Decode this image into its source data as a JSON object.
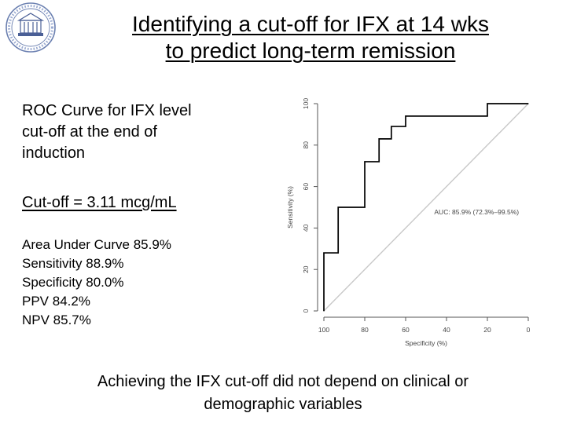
{
  "slide": {
    "title_lines": [
      "Identifying a cut-off for IFX at 14 wks",
      "to predict long-term remission"
    ],
    "roc_heading_lines": [
      "ROC Curve for IFX level",
      "cut-off at the end of",
      "induction"
    ],
    "cutoff_text": "Cut-off = 3.11 mcg/mL",
    "stats": [
      "Area Under Curve 85.9%",
      "Sensitivity 88.9%",
      "Specificity 80.0%",
      "PPV 84.2%",
      "NPV 85.7%"
    ],
    "conclusion_lines": [
      "Achieving the IFX cut-off did not depend on clinical or",
      "demographic variables"
    ]
  },
  "chart_data": {
    "type": "line",
    "title": "",
    "xlabel": "Specificity (%)",
    "ylabel": "Sensitivity (%)",
    "x_reversed": true,
    "xlim": [
      100,
      0
    ],
    "ylim": [
      0,
      100
    ],
    "x_ticks": [
      100,
      80,
      60,
      40,
      20,
      0
    ],
    "y_ticks": [
      0,
      20,
      40,
      60,
      80,
      100
    ],
    "grid": false,
    "series": [
      {
        "color": "#000000",
        "x": [
          100,
          100,
          93,
          93,
          80,
          80,
          73,
          73,
          67,
          67,
          67,
          60,
          60,
          40,
          20,
          20,
          13,
          0
        ],
        "y": [
          0,
          28,
          28,
          50,
          50,
          72,
          72,
          83,
          83,
          89,
          89,
          89,
          94,
          94,
          94,
          100,
          100,
          100
        ]
      }
    ],
    "reference_line": {
      "x": [
        100,
        0
      ],
      "y": [
        0,
        100
      ],
      "color": "#c8c8c8"
    },
    "annotation": "AUC: 85.9% (72.3%–99.5%)"
  }
}
